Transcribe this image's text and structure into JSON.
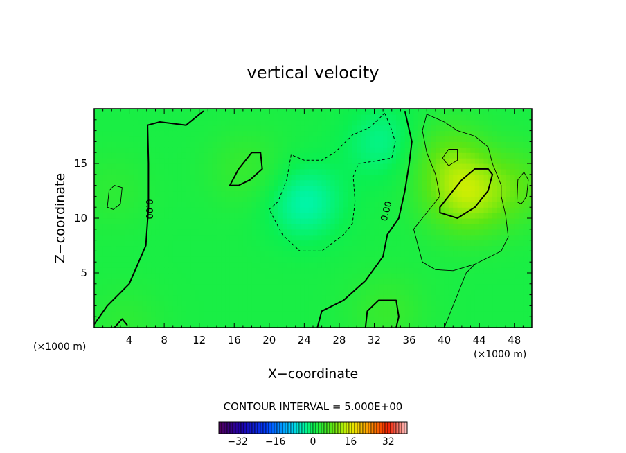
{
  "chart_data": {
    "type": "heatmap",
    "title": "vertical velocity",
    "xlabel": "X−coordinate",
    "ylabel": "Z−coordinate",
    "x_unit_left": "(×1000 m)",
    "x_unit_right": "(×1000 m)",
    "xlim": [
      0,
      50
    ],
    "ylim": [
      0,
      20
    ],
    "xticks": [
      4,
      8,
      12,
      16,
      20,
      24,
      28,
      32,
      36,
      40,
      44,
      48
    ],
    "yticks": [
      5,
      10,
      15
    ],
    "contour_interval_text": "CONTOUR INTERVAL = 5.000E+00",
    "zero_contour_labels": [
      "0.00",
      "0.00"
    ],
    "colorbar": {
      "range": [
        -40,
        40
      ],
      "ticks": [
        -32,
        -16,
        0,
        16,
        32
      ],
      "tick_labels": [
        "−32",
        "−16",
        "0",
        "16",
        "32"
      ],
      "colormap": "rainbow"
    },
    "field_features": [
      {
        "x": 24,
        "z": 11.5,
        "value": -5.5
      },
      {
        "x": 33,
        "z": 17,
        "value": -4
      },
      {
        "x": 42.5,
        "z": 12,
        "value": 10
      },
      {
        "x": 40.5,
        "z": 15.5,
        "value": 6
      },
      {
        "x": 48.5,
        "z": 13,
        "value": 5
      },
      {
        "x": 2,
        "z": 12.5,
        "value": 2
      },
      {
        "x": 17.5,
        "z": 14.5,
        "value": 3
      },
      {
        "x": 33.5,
        "z": 1.5,
        "value": 3
      },
      {
        "x": 3.5,
        "z": 0.4,
        "value": 2
      }
    ],
    "contours": [
      {
        "level": 0,
        "style": "thick",
        "points": [
          [
            0,
            0.3
          ],
          [
            1.5,
            2
          ],
          [
            4,
            4
          ],
          [
            5.9,
            7.5
          ],
          [
            6.2,
            11
          ],
          [
            6.2,
            15
          ],
          [
            6.1,
            18.5
          ],
          [
            7.5,
            18.8
          ],
          [
            10.5,
            18.5
          ],
          [
            12.5,
            19.8
          ]
        ]
      },
      {
        "level": 0,
        "style": "thick",
        "points": [
          [
            25.5,
            0
          ],
          [
            26,
            1.5
          ],
          [
            28.5,
            2.5
          ],
          [
            31,
            4.3
          ],
          [
            33,
            6.5
          ],
          [
            33.5,
            8.5
          ],
          [
            34.8,
            10
          ],
          [
            35.5,
            12.5
          ],
          [
            36,
            15
          ],
          [
            36.3,
            17
          ],
          [
            35.5,
            19.8
          ]
        ]
      },
      {
        "level": 0,
        "style": "thick",
        "closed": true,
        "points": [
          [
            15.5,
            13
          ],
          [
            16.5,
            14.5
          ],
          [
            18,
            16
          ],
          [
            19,
            16
          ],
          [
            19.2,
            14.5
          ],
          [
            17.8,
            13.5
          ],
          [
            16.5,
            13
          ]
        ]
      },
      {
        "level": 0,
        "style": "thick",
        "points": [
          [
            31,
            0
          ],
          [
            31.2,
            1.5
          ],
          [
            32.5,
            2.5
          ],
          [
            34.5,
            2.5
          ],
          [
            34.8,
            1
          ],
          [
            34.5,
            0
          ]
        ]
      },
      {
        "level": 0,
        "style": "thick",
        "points": [
          [
            2.3,
            0
          ],
          [
            3.2,
            0.8
          ],
          [
            3.8,
            0.2
          ]
        ]
      },
      {
        "level": -5,
        "style": "dashed",
        "points": [
          [
            33.2,
            19.6
          ],
          [
            31.5,
            18.3
          ],
          [
            29.5,
            17.6
          ],
          [
            27.5,
            16
          ],
          [
            26,
            15.3
          ],
          [
            24,
            15.3
          ],
          [
            22.5,
            15.8
          ],
          [
            22,
            13.5
          ],
          [
            21,
            11.5
          ],
          [
            20,
            10.8
          ],
          [
            21.5,
            8.5
          ],
          [
            23.5,
            7
          ],
          [
            26,
            7
          ],
          [
            28.5,
            8.5
          ],
          [
            29.5,
            9.5
          ],
          [
            29.8,
            11.5
          ],
          [
            29.6,
            13.8
          ],
          [
            30.2,
            15
          ],
          [
            32,
            15.2
          ],
          [
            34,
            15.5
          ],
          [
            34.4,
            17
          ],
          [
            33.8,
            18.5
          ],
          [
            33.2,
            19.6
          ]
        ]
      },
      {
        "level": 5,
        "style": "thin",
        "points": [
          [
            40,
            0
          ],
          [
            42.5,
            5
          ],
          [
            43.5,
            5.8
          ],
          [
            46.5,
            7
          ],
          [
            47.3,
            8.3
          ],
          [
            47,
            10.3
          ],
          [
            46.5,
            12
          ],
          [
            46.5,
            13
          ],
          [
            45.5,
            15
          ],
          [
            45,
            16.5
          ],
          [
            43.5,
            17.5
          ],
          [
            41.5,
            18
          ],
          [
            40,
            18.8
          ],
          [
            38,
            19.5
          ],
          [
            37.5,
            18
          ],
          [
            38,
            16
          ],
          [
            39,
            14
          ],
          [
            39.5,
            12
          ],
          [
            37.5,
            10
          ],
          [
            36.5,
            9
          ],
          [
            37,
            7.5
          ],
          [
            37.5,
            6
          ],
          [
            39,
            5.3
          ],
          [
            41,
            5.2
          ],
          [
            43.5,
            5.8
          ]
        ]
      },
      {
        "level": 10,
        "style": "thick",
        "closed": true,
        "points": [
          [
            39.5,
            10.5
          ],
          [
            41.5,
            10
          ],
          [
            43.5,
            11
          ],
          [
            45,
            12.5
          ],
          [
            45.5,
            14
          ],
          [
            45,
            14.5
          ],
          [
            43.5,
            14.5
          ],
          [
            42,
            13.5
          ],
          [
            40.5,
            12
          ],
          [
            39.5,
            11
          ]
        ]
      },
      {
        "level": 5,
        "style": "thin",
        "closed": true,
        "points": [
          [
            39.8,
            15.5
          ],
          [
            40.5,
            16.3
          ],
          [
            41.5,
            16.3
          ],
          [
            41.5,
            15.3
          ],
          [
            40.5,
            14.8
          ]
        ]
      },
      {
        "level": 5,
        "style": "thin",
        "closed": true,
        "points": [
          [
            1.5,
            11
          ],
          [
            1.7,
            12.5
          ],
          [
            2.3,
            13
          ],
          [
            3.2,
            12.8
          ],
          [
            3,
            11.3
          ],
          [
            2.2,
            10.8
          ]
        ]
      },
      {
        "level": 5,
        "style": "thin",
        "closed": true,
        "points": [
          [
            48.3,
            11.5
          ],
          [
            48.4,
            13.5
          ],
          [
            49.1,
            14.2
          ],
          [
            49.6,
            13.5
          ],
          [
            49.4,
            12
          ],
          [
            48.8,
            11.3
          ]
        ]
      }
    ]
  }
}
